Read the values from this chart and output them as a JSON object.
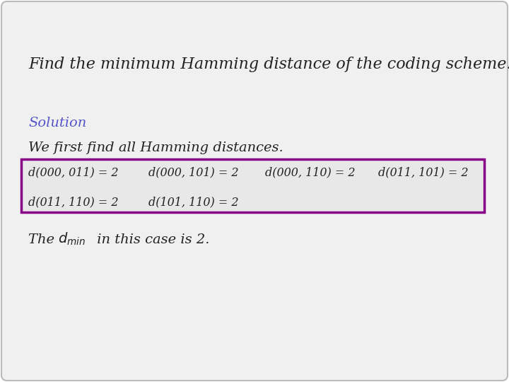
{
  "background_color": "#f0f0f0",
  "outer_bg": "#ffffff",
  "title_text": "Find the minimum Hamming distance of the coding scheme.",
  "solution_label": "Solution",
  "solution_label_color": "#5555cc",
  "subtitle_text": "We first find all Hamming distances.",
  "box_bg": "#e8e8e8",
  "box_border_color": "#880088",
  "box_row1": [
    "d(000, 011) = 2",
    "d(000, 101) = 2",
    "d(000, 110) = 2",
    "d(011, 101) = 2"
  ],
  "box_row2": [
    "d(011, 110) = 2",
    "d(101, 110) = 2"
  ],
  "text_color": "#222222",
  "font_size_title": 16,
  "font_size_body": 14,
  "font_size_box": 11.5
}
